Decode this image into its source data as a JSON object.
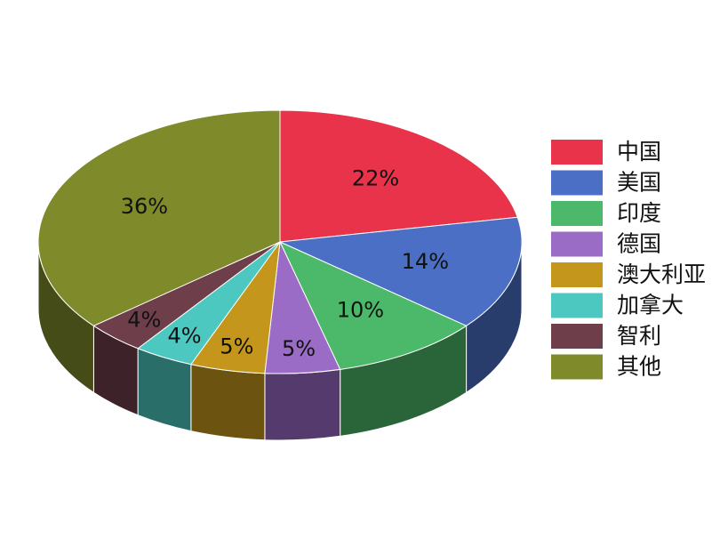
{
  "chart_data": {
    "type": "pie",
    "categories": [
      "中国",
      "美国",
      "印度",
      "德国",
      "澳大利亚",
      "加拿大",
      "智利",
      "其他"
    ],
    "values": [
      22,
      14,
      10,
      5,
      5,
      4,
      4,
      36
    ],
    "value_labels": [
      "22%",
      "14%",
      "10%",
      "5%",
      "5%",
      "4%",
      "4%",
      "36%"
    ],
    "colors": [
      "#e8334a",
      "#4a6fc4",
      "#4cb86a",
      "#9a6cc6",
      "#c4961c",
      "#4cc8c0",
      "#6e3e4a",
      "#7f8a2a"
    ],
    "legend": "right"
  }
}
